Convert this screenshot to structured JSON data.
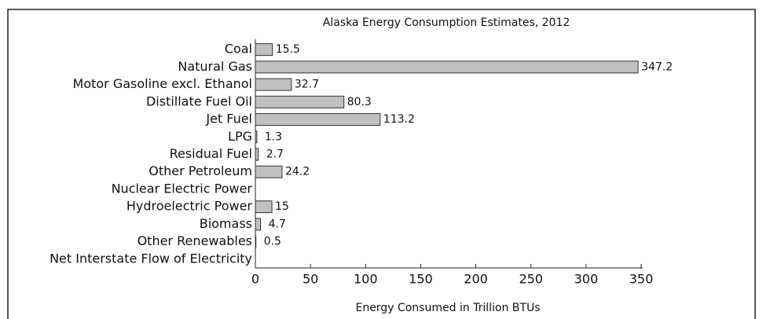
{
  "chart_data": {
    "type": "bar",
    "orientation": "horizontal",
    "title": "Alaska Energy Consumption Estimates, 2012",
    "xlabel": "Energy Consumed in Trillion BTUs",
    "categories": [
      "Coal",
      "Natural Gas",
      "Motor Gasoline excl. Ethanol",
      "Distillate Fuel Oil",
      "Jet Fuel",
      "LPG",
      "Residual Fuel",
      "Other Petroleum",
      "Nuclear Electric Power",
      "Hydroelectric Power",
      "Biomass",
      "Other Renewables",
      "Net Interstate Flow of Electricity"
    ],
    "values": [
      15.5,
      347.2,
      32.7,
      80.3,
      113.2,
      1.3,
      2.7,
      24.2,
      null,
      15,
      4.7,
      0.5,
      null
    ],
    "color": "#c0c0c0",
    "xlim": [
      0,
      350
    ],
    "xticks": [
      0,
      50,
      100,
      150,
      200,
      250,
      300,
      350
    ]
  }
}
